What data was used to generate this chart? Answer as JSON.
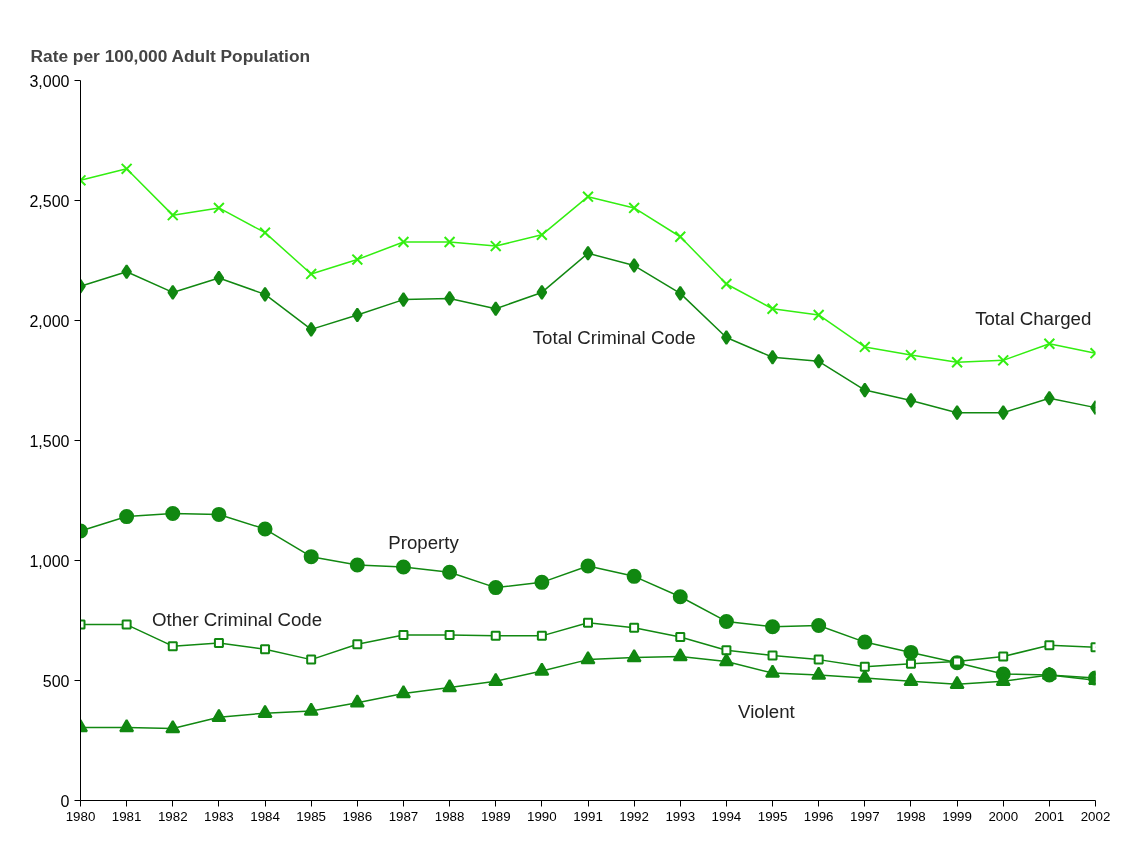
{
  "chart_data": {
    "type": "line",
    "ylabel": "Rate per 100,000 Adult Population",
    "x": [
      1980,
      1981,
      1982,
      1983,
      1984,
      1985,
      1986,
      1987,
      1988,
      1989,
      1990,
      1991,
      1992,
      1993,
      1994,
      1995,
      1996,
      1997,
      1998,
      1999,
      2000,
      2001,
      2002
    ],
    "xlim": [
      1980,
      2002
    ],
    "xticks": [
      1980,
      1981,
      1982,
      1983,
      1984,
      1985,
      1986,
      1987,
      1988,
      1989,
      1990,
      1991,
      1992,
      1993,
      1994,
      1995,
      1996,
      1997,
      1998,
      1999,
      2000,
      2001,
      2002
    ],
    "ylim": [
      0,
      3000
    ],
    "yticks": [
      {
        "value": 0,
        "label": "0"
      },
      {
        "value": 500,
        "label": "500"
      },
      {
        "value": 1000,
        "label": "1,000"
      },
      {
        "value": 1500,
        "label": "1,500"
      },
      {
        "value": 2000,
        "label": "2,000"
      },
      {
        "value": 2500,
        "label": "2,500"
      },
      {
        "value": 3000,
        "label": "3,000"
      }
    ],
    "grid": false,
    "series": [
      {
        "name": "Total Charged",
        "color": "#33ee11",
        "marker": "cross",
        "values": [
          2584,
          2632,
          2439,
          2469,
          2366,
          2194,
          2254,
          2327,
          2327,
          2310,
          2357,
          2516,
          2469,
          2349,
          2152,
          2049,
          2023,
          1890,
          1856,
          1826,
          1834,
          1903,
          1864
        ]
      },
      {
        "name": "Total Criminal Code",
        "color": "#118811",
        "marker": "diamond",
        "values": [
          2143,
          2203,
          2117,
          2177,
          2109,
          1963,
          2023,
          2087,
          2092,
          2049,
          2117,
          2280,
          2229,
          2113,
          1929,
          1847,
          1830,
          1710,
          1667,
          1616,
          1616,
          1676,
          1637
        ]
      },
      {
        "name": "Property",
        "color": "#118811",
        "marker": "circle",
        "values": [
          1123,
          1183,
          1196,
          1192,
          1131,
          1016,
          981,
          973,
          951,
          887,
          909,
          977,
          934,
          849,
          746,
          724,
          729,
          660,
          617,
          574,
          527,
          523,
          510
        ]
      },
      {
        "name": "Other Criminal Code",
        "color": "#118811",
        "marker": "square",
        "values": [
          733,
          733,
          643,
          656,
          630,
          587,
          651,
          690,
          690,
          686,
          686,
          741,
          720,
          681,
          626,
          604,
          587,
          557,
          570,
          579,
          600,
          647,
          639
        ]
      },
      {
        "name": "Violent",
        "color": "#118811",
        "marker": "triangle",
        "values": [
          304,
          304,
          300,
          347,
          364,
          373,
          407,
          446,
          471,
          497,
          540,
          587,
          596,
          600,
          579,
          531,
          523,
          510,
          497,
          484,
          497,
          523,
          501
        ]
      }
    ]
  }
}
